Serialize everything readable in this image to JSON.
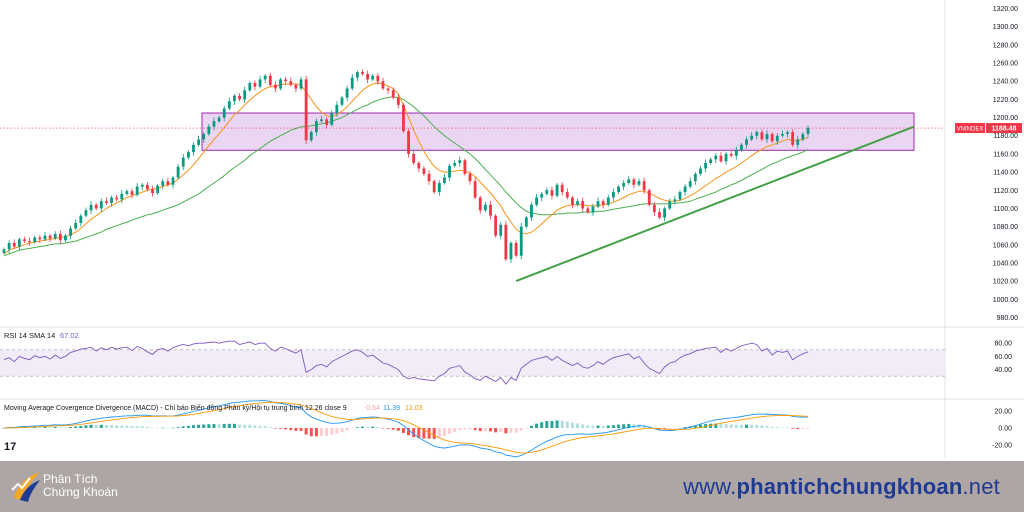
{
  "chart_data": {
    "type": "candlestick",
    "symbol": "VNINDEX",
    "last_price": 1188.48,
    "last_price_label": "1188.48",
    "y_axis_ticks": [
      980,
      1000,
      1020,
      1040,
      1060,
      1080,
      1100,
      1120,
      1140,
      1160,
      1180,
      1200,
      1220,
      1240,
      1260,
      1280,
      1300,
      1320
    ],
    "y_axis_tick_labels": [
      "980.00",
      "1000.00",
      "1020.00",
      "1040.00",
      "1060.00",
      "1080.00",
      "1100.00",
      "1120.00",
      "1140.00",
      "1160.00",
      "1180.00",
      "1200.00",
      "1220.00",
      "1240.00",
      "1260.00",
      "1280.00",
      "1300.00",
      "1320.00"
    ],
    "ylim": [
      975,
      1325
    ],
    "closes": [
      1055,
      1062,
      1058,
      1066,
      1064,
      1063,
      1068,
      1066,
      1070,
      1067,
      1072,
      1065,
      1070,
      1078,
      1084,
      1092,
      1098,
      1104,
      1100,
      1108,
      1106,
      1112,
      1110,
      1116,
      1119,
      1115,
      1124,
      1126,
      1121,
      1117,
      1125,
      1130,
      1126,
      1134,
      1146,
      1156,
      1162,
      1170,
      1176,
      1182,
      1190,
      1196,
      1200,
      1210,
      1218,
      1224,
      1220,
      1230,
      1238,
      1234,
      1242,
      1246,
      1236,
      1232,
      1242,
      1240,
      1236,
      1232,
      1242,
      1175,
      1184,
      1196,
      1198,
      1192,
      1205,
      1214,
      1222,
      1232,
      1244,
      1250,
      1248,
      1242,
      1246,
      1240,
      1232,
      1230,
      1222,
      1214,
      1185,
      1160,
      1150,
      1144,
      1138,
      1130,
      1118,
      1128,
      1134,
      1147,
      1150,
      1153,
      1138,
      1130,
      1112,
      1098,
      1104,
      1092,
      1070,
      1082,
      1044,
      1062,
      1048,
      1080,
      1090,
      1104,
      1112,
      1116,
      1120,
      1114,
      1126,
      1118,
      1112,
      1104,
      1108,
      1100,
      1096,
      1102,
      1108,
      1104,
      1112,
      1118,
      1124,
      1128,
      1132,
      1126,
      1130,
      1120,
      1104,
      1096,
      1090,
      1100,
      1108,
      1110,
      1118,
      1124,
      1130,
      1138,
      1144,
      1150,
      1154,
      1158,
      1152,
      1160,
      1158,
      1164,
      1170,
      1176,
      1180,
      1184,
      1176,
      1182,
      1174,
      1180,
      1182,
      1184,
      1170,
      1176,
      1182,
      1188.48
    ],
    "sma_fast": [
      1050,
      1054,
      1056,
      1058,
      1060,
      1062,
      1063,
      1064,
      1065,
      1066,
      1067,
      1068,
      1069,
      1071,
      1074,
      1078,
      1083,
      1088,
      1092,
      1096,
      1100,
      1103,
      1106,
      1109,
      1112,
      1114,
      1116,
      1118,
      1120,
      1121,
      1122,
      1124,
      1126,
      1128,
      1132,
      1137,
      1142,
      1148,
      1155,
      1162,
      1169,
      1176,
      1182,
      1189,
      1196,
      1203,
      1208,
      1214,
      1219,
      1224,
      1228,
      1232,
      1234,
      1235,
      1236,
      1237,
      1237,
      1237,
      1236,
      1228,
      1220,
      1212,
      1206,
      1202,
      1201,
      1203,
      1207,
      1212,
      1218,
      1224,
      1230,
      1234,
      1237,
      1238,
      1237,
      1235,
      1232,
      1226,
      1214,
      1200,
      1186,
      1174,
      1163,
      1154,
      1146,
      1142,
      1140,
      1140,
      1141,
      1142,
      1141,
      1139,
      1135,
      1129,
      1123,
      1117,
      1110,
      1103,
      1093,
      1085,
      1077,
      1073,
      1072,
      1074,
      1078,
      1083,
      1088,
      1093,
      1098,
      1101,
      1103,
      1104,
      1104,
      1104,
      1103,
      1103,
      1103,
      1104,
      1105,
      1107,
      1109,
      1112,
      1115,
      1117,
      1119,
      1119,
      1117,
      1114,
      1111,
      1109,
      1108,
      1108,
      1109,
      1111,
      1114,
      1117,
      1121,
      1125,
      1129,
      1133,
      1136,
      1140,
      1143,
      1146,
      1150,
      1154,
      1158,
      1162,
      1165,
      1168,
      1170,
      1172,
      1174,
      1176,
      1175,
      1175,
      1176,
      1178
    ],
    "sma_slow": [
      1048,
      1050,
      1052,
      1054,
      1055,
      1056,
      1057,
      1058,
      1059,
      1060,
      1061,
      1061,
      1062,
      1063,
      1064,
      1066,
      1068,
      1070,
      1072,
      1074,
      1077,
      1079,
      1081,
      1083,
      1085,
      1087,
      1089,
      1091,
      1093,
      1094,
      1096,
      1098,
      1100,
      1102,
      1104,
      1107,
      1110,
      1113,
      1116,
      1120,
      1124,
      1128,
      1132,
      1136,
      1141,
      1145,
      1149,
      1153,
      1158,
      1162,
      1166,
      1170,
      1174,
      1177,
      1180,
      1183,
      1186,
      1188,
      1190,
      1190,
      1191,
      1192,
      1193,
      1194,
      1196,
      1198,
      1200,
      1203,
      1206,
      1209,
      1212,
      1214,
      1217,
      1219,
      1221,
      1222,
      1223,
      1222,
      1220,
      1216,
      1212,
      1207,
      1202,
      1196,
      1190,
      1185,
      1180,
      1176,
      1172,
      1168,
      1164,
      1160,
      1155,
      1149,
      1143,
      1137,
      1131,
      1125,
      1118,
      1112,
      1106,
      1101,
      1097,
      1095,
      1094,
      1093,
      1093,
      1093,
      1094,
      1094,
      1095,
      1095,
      1095,
      1096,
      1096,
      1096,
      1097,
      1097,
      1098,
      1099,
      1100,
      1101,
      1102,
      1103,
      1104,
      1105,
      1105,
      1105,
      1105,
      1105,
      1105,
      1106,
      1106,
      1107,
      1108,
      1110,
      1112,
      1114,
      1116,
      1118,
      1121,
      1123,
      1126,
      1128,
      1131,
      1134,
      1137,
      1140,
      1143,
      1146,
      1149,
      1151,
      1154,
      1156,
      1158,
      1160,
      1162,
      1165
    ],
    "resistance_zone": {
      "top": 1205,
      "bottom": 1164
    },
    "trendline": {
      "start_bar": 100,
      "start_value": 1020,
      "end_bar": 176,
      "end_value": 1190
    },
    "rsi": {
      "label": "RSI 14 SMA 14",
      "value_label": "67.02",
      "y_ticks": [
        40,
        60,
        80
      ],
      "y_tick_labels": [
        "40.00",
        "60.00",
        "80.00"
      ],
      "band": [
        30,
        70
      ],
      "values": [
        55,
        58,
        52,
        60,
        57,
        55,
        61,
        58,
        60,
        56,
        62,
        57,
        60,
        66,
        68,
        71,
        72,
        74,
        68,
        73,
        70,
        74,
        71,
        73,
        74,
        69,
        75,
        72,
        67,
        63,
        70,
        72,
        68,
        73,
        76,
        78,
        76,
        79,
        80,
        80,
        81,
        82,
        80,
        82,
        83,
        83,
        78,
        80,
        82,
        78,
        80,
        80,
        72,
        68,
        74,
        72,
        68,
        65,
        70,
        36,
        40,
        46,
        48,
        44,
        52,
        56,
        60,
        64,
        68,
        70,
        66,
        60,
        62,
        56,
        50,
        48,
        44,
        40,
        30,
        26,
        28,
        26,
        25,
        24,
        23,
        30,
        34,
        42,
        44,
        46,
        36,
        32,
        26,
        24,
        30,
        26,
        22,
        28,
        18,
        28,
        24,
        42,
        48,
        54,
        56,
        58,
        60,
        54,
        60,
        54,
        50,
        46,
        50,
        44,
        42,
        46,
        52,
        48,
        54,
        58,
        60,
        62,
        64,
        56,
        60,
        50,
        42,
        38,
        34,
        44,
        50,
        52,
        58,
        62,
        64,
        68,
        70,
        72,
        73,
        74,
        66,
        72,
        68,
        72,
        76,
        78,
        80,
        78,
        68,
        72,
        62,
        68,
        66,
        68,
        55,
        60,
        64,
        67.02
      ],
      "ma": [
        57,
        57,
        57,
        57,
        57,
        57,
        57,
        57,
        57,
        57,
        58,
        58,
        58,
        59,
        60,
        61,
        62,
        63,
        64,
        65,
        66,
        67,
        68,
        69,
        70,
        70,
        71,
        71,
        71,
        71,
        71,
        71,
        71,
        72,
        72,
        73,
        73,
        74,
        75,
        76,
        77,
        77,
        78,
        78,
        79,
        79,
        79,
        79,
        80,
        80,
        80,
        80,
        79,
        79,
        78,
        78,
        77,
        76,
        75,
        72,
        69,
        66,
        63,
        61,
        60,
        59,
        58,
        58,
        58,
        58,
        58,
        59,
        60,
        60,
        60,
        59,
        58,
        56,
        53,
        50,
        47,
        44,
        41,
        37,
        33,
        30,
        30,
        31,
        32,
        33,
        33,
        33,
        33,
        32,
        31,
        30,
        29,
        28,
        27,
        26,
        26,
        27,
        29,
        31,
        34,
        37,
        40,
        42,
        45,
        47,
        49,
        50,
        50,
        50,
        49,
        49,
        49,
        49,
        50,
        51,
        52,
        53,
        54,
        55,
        55,
        55,
        54,
        53,
        52,
        51,
        51,
        51,
        52,
        53,
        55,
        57,
        59,
        61,
        63,
        65,
        66,
        67,
        68,
        69,
        70,
        71,
        72,
        73,
        72,
        72,
        71,
        71,
        70,
        70,
        68,
        67,
        66,
        65
      ]
    },
    "macd": {
      "label": "Moving Average Covergence Divergence (MACD) - Chỉ báo Biến động Phân kỳ/Hội tụ trung bình 12 26 close 9",
      "hist_value_label": "-0.64",
      "macd_value_label": "11.39",
      "signal_value_label": "12.03",
      "y_ticks": [
        -20,
        0,
        20
      ],
      "y_tick_labels": [
        "-20.00",
        "0.00",
        "20.00"
      ]
    },
    "colors": {
      "up": "#089981",
      "down": "#f23645",
      "sma_fast": "#f7931a",
      "sma_slow": "#4caf50",
      "zone_fill": "#e3c8ef",
      "zone_border": "#9c27b0",
      "trendline": "#43a047",
      "rsi_line": "#7e57c2",
      "rsi_ma": "#f7c531",
      "macd_line": "#2196f3",
      "signal_line": "#ff9800",
      "price_label_bg": "#f23645"
    }
  },
  "branding": {
    "name_line1": "Phân Tích",
    "name_line2": "Chứng Khoán",
    "website_prefix": "www.",
    "website_bold": "phantichchungkhoan",
    "website_suffix": ".net",
    "tv_logo": "17"
  }
}
